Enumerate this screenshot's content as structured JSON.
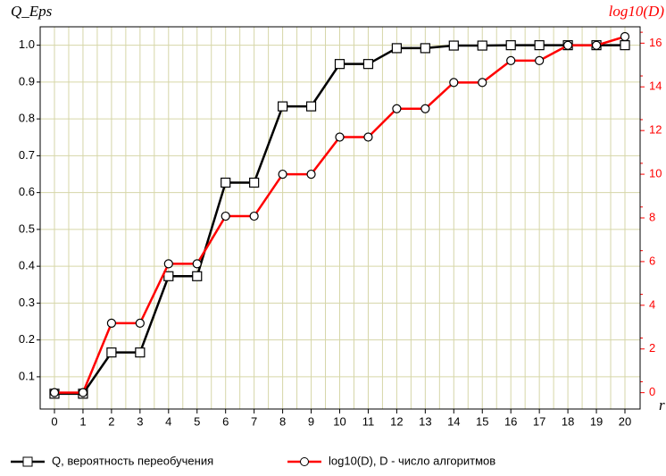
{
  "chart_data": {
    "type": "line",
    "y_label": "Q_Eps",
    "y2_label": "log10(D)",
    "x_label": "r",
    "categories": [
      "0",
      "1",
      "2",
      "3",
      "4",
      "5",
      "6",
      "7",
      "8",
      "9",
      "10",
      "11",
      "12",
      "13",
      "14",
      "15",
      "16",
      "17",
      "18",
      "19",
      "20"
    ],
    "series": [
      {
        "name": "Q, вероятность переобучения",
        "color": "#000000",
        "marker": "square",
        "values": [
          0.054,
          0.054,
          0.166,
          0.166,
          0.373,
          0.373,
          0.627,
          0.627,
          0.834,
          0.834,
          0.949,
          0.949,
          0.992,
          0.992,
          0.999,
          0.999,
          1.0,
          1.0,
          1.0,
          1.0,
          1.0
        ]
      },
      {
        "name": "log10(D), D - число алгоритмов",
        "color": "#ff0000",
        "marker": "circle",
        "axis": "y2",
        "values": [
          0,
          0,
          3.18,
          3.18,
          5.9,
          5.9,
          8.08,
          8.08,
          10.0,
          10.0,
          11.7,
          11.7,
          13.0,
          13.0,
          14.2,
          14.2,
          15.2,
          15.2,
          15.9,
          15.9,
          16.3
        ]
      }
    ],
    "ylim": [
      0.0125,
      1.05
    ],
    "yticks": [
      0.1,
      0.2,
      0.3,
      0.4,
      0.5,
      0.6,
      0.7,
      0.8,
      0.9,
      {
        "value": 1.0,
        "label": "1.0"
      }
    ],
    "y2lim": [
      -0.75,
      16.75
    ],
    "y2ticks": [
      0,
      2,
      4,
      6,
      8,
      10,
      12,
      14,
      16
    ],
    "grid": true,
    "legend": "bottom"
  }
}
